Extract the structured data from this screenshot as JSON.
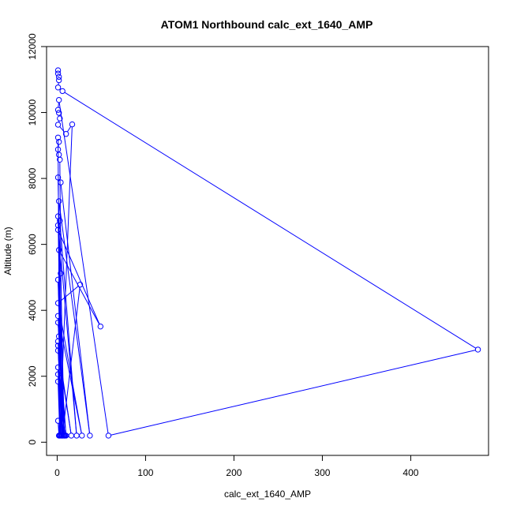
{
  "chart_data": {
    "type": "line",
    "title": "ATOM1 Northbound calc_ext_1640_AMP",
    "xlabel": "calc_ext_1640_AMP",
    "ylabel": "Altitude (m)",
    "xlim": [
      -12,
      488
    ],
    "ylim": [
      -400,
      12000
    ],
    "x_ticks": [
      0,
      100,
      200,
      300,
      400
    ],
    "y_ticks": [
      0,
      2000,
      4000,
      6000,
      8000,
      10000,
      12000
    ],
    "series": [
      {
        "color": "#0000ff",
        "marker": "open-circle",
        "points": [
          [
            1,
            11280
          ],
          [
            1,
            11180
          ],
          [
            2,
            11080
          ],
          [
            2,
            10980
          ],
          [
            1,
            10760
          ],
          [
            6,
            10650
          ],
          [
            476,
            2810
          ],
          [
            58,
            200
          ],
          [
            2,
            10380
          ],
          [
            1,
            10080
          ],
          [
            2,
            9990
          ],
          [
            3,
            9820
          ],
          [
            1,
            9630
          ],
          [
            10,
            9350
          ],
          [
            17,
            9640
          ],
          [
            3,
            200
          ],
          [
            1,
            9240
          ],
          [
            2,
            9110
          ],
          [
            1,
            8880
          ],
          [
            2,
            8720
          ],
          [
            3,
            8570
          ],
          [
            6,
            200
          ],
          [
            1,
            8030
          ],
          [
            4,
            7880
          ],
          [
            37,
            200
          ],
          [
            2,
            7310
          ],
          [
            5,
            200
          ],
          [
            1,
            6850
          ],
          [
            3,
            6720
          ],
          [
            22,
            200
          ],
          [
            1,
            6580
          ],
          [
            1,
            6440
          ],
          [
            49,
            3510
          ],
          [
            2,
            5830
          ],
          [
            4,
            5120
          ],
          [
            8,
            200
          ],
          [
            1,
            4930
          ],
          [
            6,
            200
          ],
          [
            26,
            4780
          ],
          [
            1,
            4220
          ],
          [
            28,
            200
          ],
          [
            1,
            3830
          ],
          [
            8,
            200
          ],
          [
            1,
            3630
          ],
          [
            2,
            3210
          ],
          [
            10,
            200
          ],
          [
            1,
            3060
          ],
          [
            5,
            200
          ],
          [
            1,
            2930
          ],
          [
            16,
            200
          ],
          [
            1,
            2780
          ],
          [
            7,
            200
          ],
          [
            1,
            2270
          ],
          [
            4,
            200
          ],
          [
            1,
            2060
          ],
          [
            9,
            200
          ],
          [
            1,
            1840
          ],
          [
            3,
            200
          ],
          [
            1,
            650
          ],
          [
            2,
            200
          ]
        ]
      }
    ]
  }
}
